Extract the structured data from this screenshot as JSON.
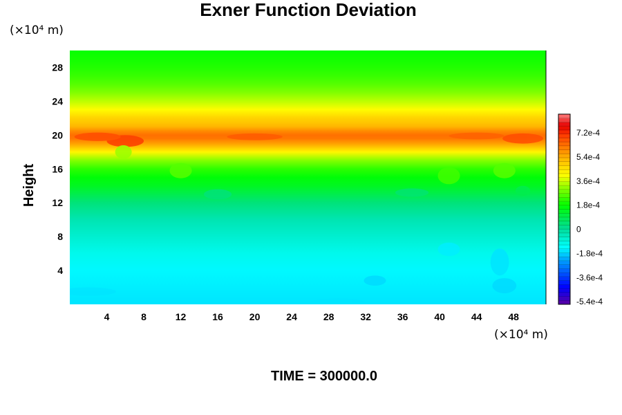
{
  "chart_data": {
    "type": "heatmap",
    "title": "Exner Function Deviation",
    "ylabel": "Height",
    "x_unit": "(×10⁴ m)",
    "y_unit": "(×10⁴ m)",
    "xlim": [
      0,
      51.5
    ],
    "ylim": [
      0,
      30
    ],
    "x_ticks": [
      4,
      8,
      12,
      16,
      20,
      24,
      28,
      32,
      36,
      40,
      44,
      48
    ],
    "y_ticks": [
      4,
      8,
      12,
      16,
      20,
      24,
      28
    ],
    "colorbar": {
      "range": [
        -0.00056,
        0.00086
      ],
      "ticks": [
        {
          "value": 0.00072,
          "label": "7.2e-4"
        },
        {
          "value": 0.00054,
          "label": "5.4e-4"
        },
        {
          "value": 0.00036,
          "label": "3.6e-4"
        },
        {
          "value": 0.00018,
          "label": "1.8e-4"
        },
        {
          "value": 0,
          "label": "0"
        },
        {
          "value": -0.00018,
          "label": "-1.8e-4"
        },
        {
          "value": -0.00036,
          "label": "-3.6e-4"
        },
        {
          "value": -0.00054,
          "label": "-5.4e-4"
        }
      ]
    },
    "vertical_profile": {
      "height": [
        0,
        2,
        4,
        6,
        8,
        10,
        12,
        13,
        14,
        15,
        16,
        17,
        18,
        19,
        19.6,
        20,
        20.5,
        21,
        21.5,
        22,
        23,
        24,
        25,
        26,
        27,
        28,
        29,
        30
      ],
      "value": [
        -0.00016,
        -0.00015,
        -0.00014,
        -0.00011,
        -7e-05,
        -3e-05,
        4e-05,
        9e-05,
        0.00014,
        0.00017,
        0.00022,
        0.0003,
        0.00042,
        0.00056,
        0.00062,
        0.00063,
        0.00059,
        0.00053,
        0.0005,
        0.00048,
        0.00041,
        0.00035,
        0.0003,
        0.00026,
        0.00023,
        0.00021,
        0.000195,
        0.000185
      ]
    }
  },
  "footer": {
    "time_label": "TIME = 300000.0"
  }
}
